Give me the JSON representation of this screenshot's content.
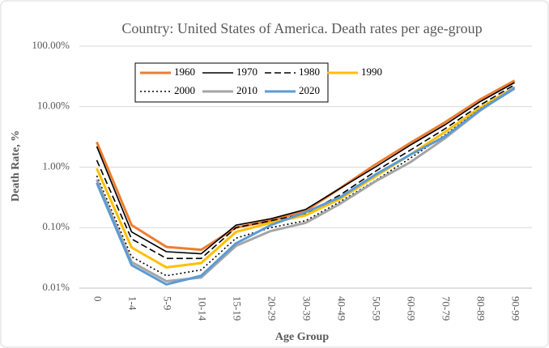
{
  "chart_data": {
    "type": "line",
    "title": "Country: United States of America. Death rates per age-group",
    "x_label": "Age Group",
    "y_label": "Death Rate, %",
    "categories": [
      "0",
      "1-4",
      "5-9",
      "10-14",
      "15-19",
      "20-29",
      "30-39",
      "40-49",
      "50-59",
      "60-69",
      "70-79",
      "80-89",
      "90-99"
    ],
    "log_y": true,
    "grid": true,
    "ylim": [
      0.01,
      100
    ],
    "yticks": [
      {
        "value": 0.01,
        "label": "0.01%"
      },
      {
        "value": 0.1,
        "label": "0.10%"
      },
      {
        "value": 1,
        "label": "1.00%"
      },
      {
        "value": 10,
        "label": "10.00%"
      },
      {
        "value": 100,
        "label": "100.00%"
      }
    ],
    "series": [
      {
        "name": "1960",
        "color": "#ed7d31",
        "dash": "solid",
        "values": [
          2.6,
          0.11,
          0.048,
          0.043,
          0.1,
          0.13,
          0.19,
          0.45,
          1.1,
          2.5,
          5.5,
          13,
          27
        ]
      },
      {
        "name": "1970",
        "color": "#000000",
        "dash": "solid",
        "values": [
          2.2,
          0.085,
          0.04,
          0.037,
          0.11,
          0.14,
          0.2,
          0.45,
          1.0,
          2.3,
          5,
          12,
          25
        ]
      },
      {
        "name": "1980",
        "color": "#000000",
        "dash": "dash",
        "values": [
          1.3,
          0.065,
          0.031,
          0.031,
          0.1,
          0.13,
          0.17,
          0.35,
          0.85,
          1.9,
          4.3,
          10.5,
          23
        ]
      },
      {
        "name": "1990",
        "color": "#ffc000",
        "dash": "solid",
        "values": [
          0.95,
          0.047,
          0.022,
          0.026,
          0.085,
          0.12,
          0.16,
          0.3,
          0.7,
          1.6,
          3.8,
          9.5,
          21
        ]
      },
      {
        "name": "2000",
        "color": "#000000",
        "dash": "dot",
        "values": [
          0.72,
          0.033,
          0.016,
          0.02,
          0.067,
          0.1,
          0.13,
          0.27,
          0.6,
          1.4,
          3.4,
          9,
          21
        ]
      },
      {
        "name": "2010",
        "color": "#a5a5a5",
        "dash": "solid",
        "values": [
          0.62,
          0.027,
          0.013,
          0.015,
          0.05,
          0.088,
          0.12,
          0.25,
          0.58,
          1.2,
          3,
          8.5,
          21
        ]
      },
      {
        "name": "2020",
        "color": "#5b9bd5",
        "dash": "solid",
        "values": [
          0.55,
          0.024,
          0.0115,
          0.016,
          0.055,
          0.11,
          0.18,
          0.32,
          0.75,
          1.6,
          3.2,
          8.7,
          20
        ]
      }
    ]
  }
}
